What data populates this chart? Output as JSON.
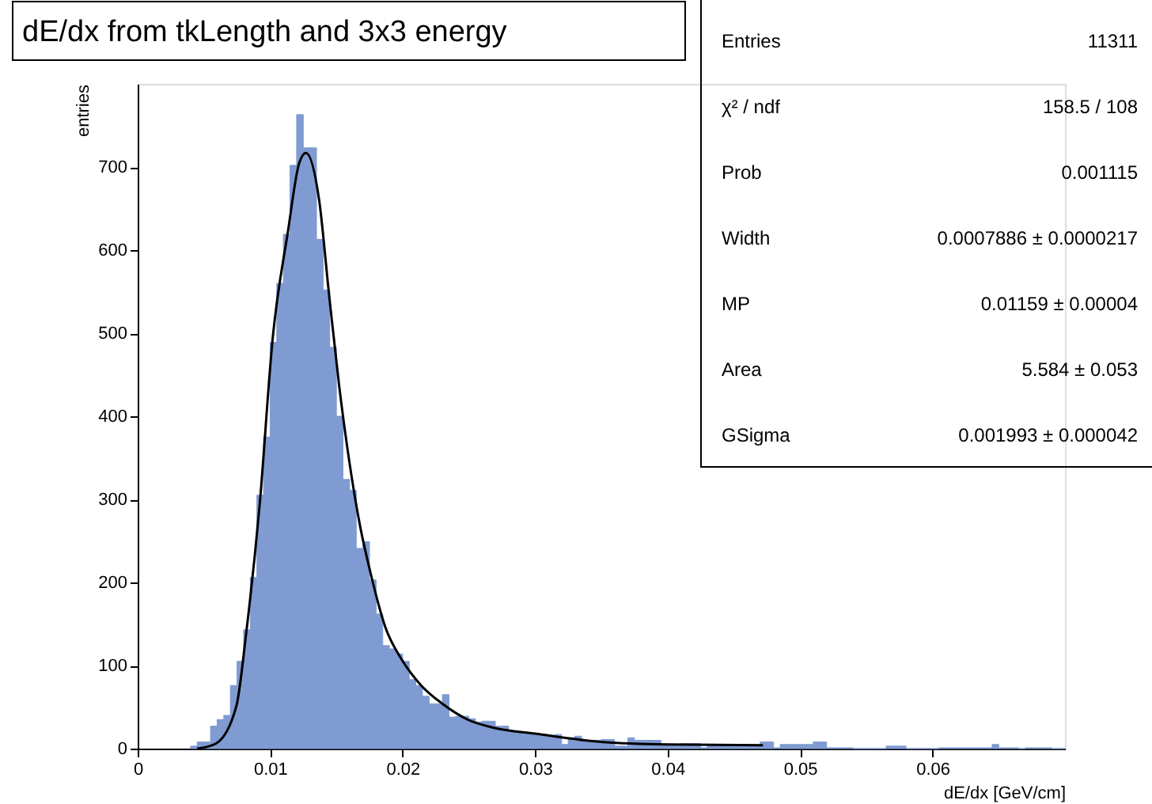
{
  "chart_data": {
    "type": "histogram",
    "title": "dE/dx from tkLength and 3x3 energy",
    "xlabel": "dE/dx [GeV/cm]",
    "ylabel": "entries",
    "xlim": [
      0,
      0.07
    ],
    "ylim": [
      0,
      800
    ],
    "xticks": [
      0,
      0.01,
      0.02,
      0.03,
      0.04,
      0.05,
      0.06
    ],
    "yticks": [
      0,
      100,
      200,
      300,
      400,
      500,
      600,
      700
    ],
    "grid": false,
    "series": [
      {
        "color": "#7f9bd2",
        "bins": [
          0.004,
          0.0045,
          0.005,
          0.0055,
          0.006,
          0.0065,
          0.007,
          0.0075,
          0.008,
          0.0085,
          0.009,
          0.0095,
          0.01,
          0.0105,
          0.011,
          0.0115,
          0.012,
          0.0125,
          0.013,
          0.0135,
          0.014,
          0.0145,
          0.015,
          0.0155,
          0.016,
          0.0165,
          0.017,
          0.0175,
          0.018,
          0.0185,
          0.019,
          0.0195,
          0.02,
          0.0205,
          0.021,
          0.0215,
          0.022,
          0.0225,
          0.023,
          0.0235,
          0.024,
          0.0245,
          0.025,
          0.0255,
          0.026,
          0.0265,
          0.027,
          0.0275,
          0.028,
          0.0285,
          0.029,
          0.0295,
          0.03,
          0.0305,
          0.031,
          0.0315,
          0.032,
          0.0325,
          0.033,
          0.0335,
          0.034,
          0.0345,
          0.035,
          0.0355,
          0.036,
          0.0365,
          0.037,
          0.0375,
          0.038,
          0.0385,
          0.039,
          0.0395,
          0.04,
          0.0405,
          0.041,
          0.0415,
          0.042,
          0.0425,
          0.043,
          0.0435,
          0.044,
          0.0445,
          0.045,
          0.0455,
          0.046,
          0.0465,
          0.047,
          0.0475,
          0.048,
          0.0485,
          0.049,
          0.0495,
          0.05,
          0.0505,
          0.051,
          0.0515,
          0.052,
          0.0525,
          0.053,
          0.0535,
          0.054,
          0.0545,
          0.055,
          0.0555,
          0.056,
          0.0565,
          0.057,
          0.0575,
          0.058,
          0.0585,
          0.059,
          0.0595,
          0.06,
          0.0605,
          0.061,
          0.0615,
          0.062,
          0.0625,
          0.063,
          0.0635,
          0.064,
          0.0645,
          0.065,
          0.0655,
          0.066,
          0.0665,
          0.067,
          0.0675,
          0.068,
          0.0685,
          0.069,
          0.0695,
          0.07
        ],
        "values": [
          3,
          8,
          8,
          27,
          35,
          40,
          76,
          105,
          143,
          206,
          305,
          375,
          489,
          560,
          619,
          702,
          763,
          723,
          723,
          613,
          552,
          483,
          400,
          324,
          311,
          241,
          249,
          203,
          162,
          124,
          120,
          114,
          105,
          83,
          76,
          63,
          54,
          54,
          65,
          38,
          39,
          39,
          36,
          32,
          33,
          33,
          27,
          27,
          20,
          19,
          19,
          18,
          17,
          17,
          16,
          17,
          5,
          13,
          15,
          10,
          10,
          10,
          11,
          11,
          3,
          3,
          13,
          10,
          10,
          10,
          10,
          5,
          5,
          5,
          6,
          6,
          6,
          1,
          5,
          5,
          5,
          3,
          3,
          3,
          3,
          3,
          8,
          8,
          1,
          5,
          5,
          5,
          5,
          5,
          8,
          8,
          1,
          1,
          1,
          1,
          0,
          0,
          0,
          0,
          0,
          3,
          3,
          3,
          0,
          0,
          0,
          0,
          0,
          1,
          1,
          1,
          1,
          1,
          1,
          1,
          1,
          5,
          1,
          1,
          1,
          0,
          1,
          1,
          1,
          1,
          0,
          0
        ]
      },
      {
        "type": "line",
        "color": "#000000",
        "x": [
          0.0045,
          0.0059,
          0.00745,
          0.0082,
          0.0092,
          0.0102,
          0.01134,
          0.0122,
          0.0127,
          0.0137,
          0.01445,
          0.0152,
          0.016,
          0.0168,
          0.0176,
          0.0187,
          0.0199,
          0.0214,
          0.023,
          0.0249,
          0.0269,
          0.03,
          0.035,
          0.04,
          0.0472
        ],
        "values": [
          0,
          6,
          51,
          140,
          292,
          495,
          622,
          705,
          717,
          660,
          546,
          438,
          343,
          267,
          210,
          146,
          108,
          76,
          54,
          35,
          25,
          18,
          8,
          5,
          4
        ]
      }
    ],
    "annotations": [
      "Entries",
      "11311",
      "χ² / ndf",
      "158.5 / 108",
      "Prob",
      "0.001115",
      "Width",
      "0.0007886 ± 0.0000217",
      "MP",
      "0.01159 ± 0.00004",
      "Area",
      "5.584 ± 0.053",
      "GSigma",
      "0.001993 ± 0.000042"
    ]
  }
}
